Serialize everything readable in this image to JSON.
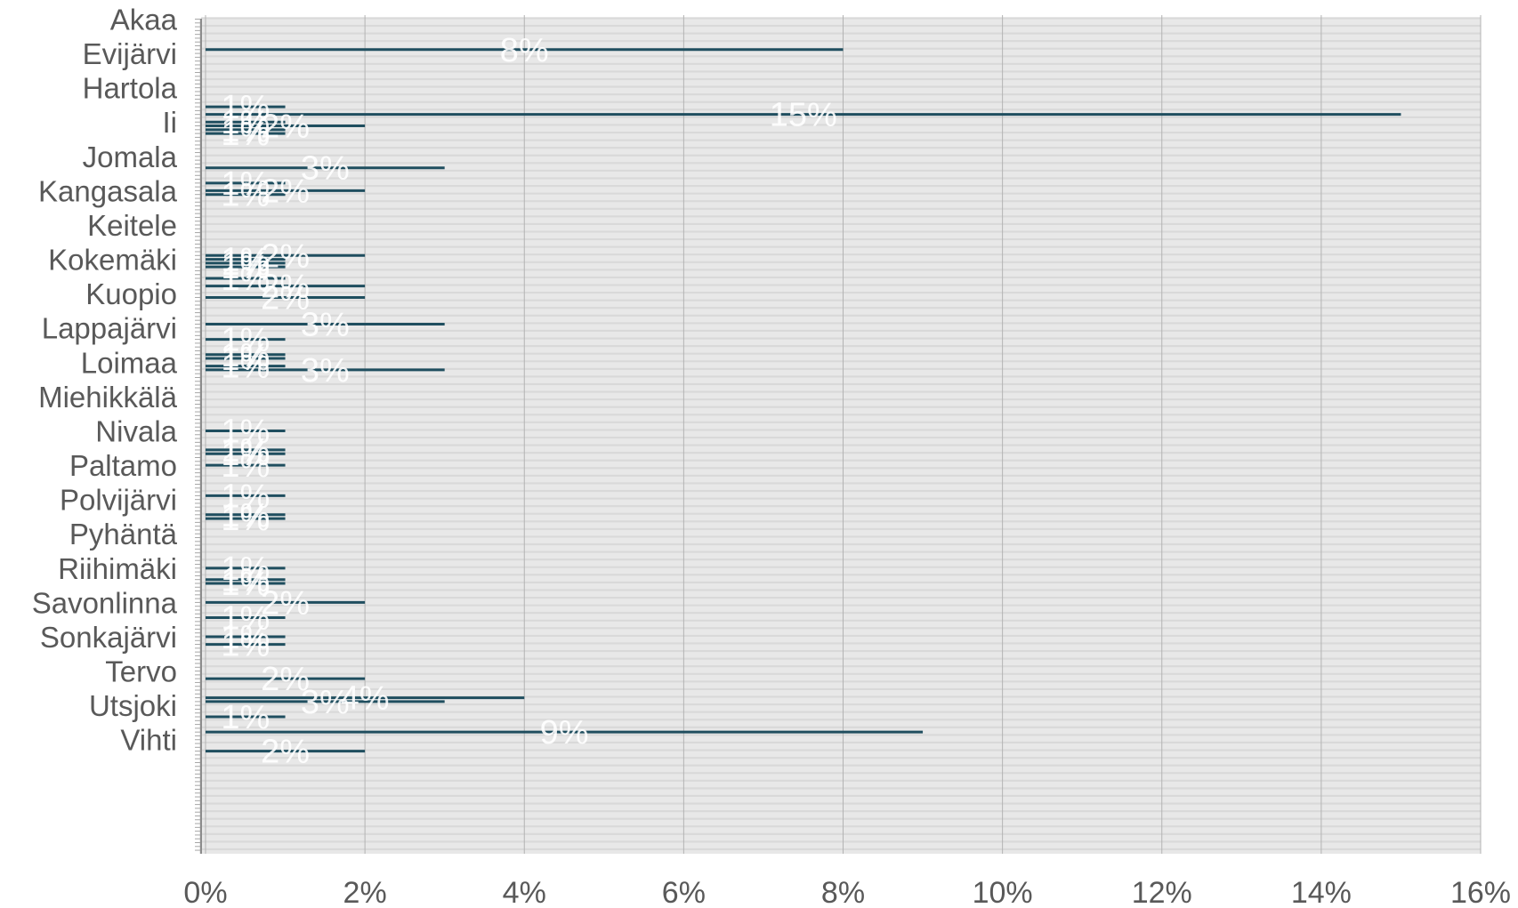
{
  "chart_data": {
    "type": "bar",
    "orientation": "horizontal",
    "title": "",
    "xlabel": "",
    "ylabel": "",
    "xlim": [
      0,
      16
    ],
    "x_ticks": [
      "0%",
      "2%",
      "4%",
      "6%",
      "8%",
      "10%",
      "12%",
      "14%",
      "16%"
    ],
    "category_labels": [
      "Akaa",
      "Evijärvi",
      "Hartola",
      "Ii",
      "Jomala",
      "Kangasala",
      "Keitele",
      "Kokemäki",
      "Kuopio",
      "Lappajärvi",
      "Loimaa",
      "Miehikkälä",
      "Nivala",
      "Paltamo",
      "Polvijärvi",
      "Pyhäntä",
      "Riihimäki",
      "Savonlinna",
      "Sonkajärvi",
      "Tervo",
      "Utsjoki",
      "Vihti"
    ],
    "bars": [
      {
        "row": 8,
        "value": 8,
        "label": "8%"
      },
      {
        "row": 23,
        "value": 1,
        "label": "1%"
      },
      {
        "row": 25,
        "value": 15,
        "label": "15%"
      },
      {
        "row": 27,
        "value": 1,
        "label": "1%"
      },
      {
        "row": 28,
        "value": 2,
        "label": "2%"
      },
      {
        "row": 29,
        "value": 1,
        "label": "1%"
      },
      {
        "row": 30,
        "value": 1,
        "label": "1%"
      },
      {
        "row": 39,
        "value": 3,
        "label": "3%"
      },
      {
        "row": 43,
        "value": 1,
        "label": "1%"
      },
      {
        "row": 45,
        "value": 2,
        "label": "2%"
      },
      {
        "row": 46,
        "value": 1,
        "label": "1%"
      },
      {
        "row": 62,
        "value": 2,
        "label": "2%"
      },
      {
        "row": 63,
        "value": 1,
        "label": "1%"
      },
      {
        "row": 64,
        "value": 1,
        "label": "1%"
      },
      {
        "row": 65,
        "value": 1,
        "label": "1%"
      },
      {
        "row": 68,
        "value": 1,
        "label": "1%"
      },
      {
        "row": 70,
        "value": 2,
        "label": "2%"
      },
      {
        "row": 73,
        "value": 2,
        "label": "2%"
      },
      {
        "row": 80,
        "value": 3,
        "label": "3%"
      },
      {
        "row": 84,
        "value": 1,
        "label": "1%"
      },
      {
        "row": 88,
        "value": 1,
        "label": "1%"
      },
      {
        "row": 89,
        "value": 1,
        "label": "1%"
      },
      {
        "row": 91,
        "value": 1,
        "label": "1%"
      },
      {
        "row": 92,
        "value": 3,
        "label": "3%"
      },
      {
        "row": 108,
        "value": 1,
        "label": "1%"
      },
      {
        "row": 113,
        "value": 1,
        "label": "1%"
      },
      {
        "row": 114,
        "value": 1,
        "label": "1%"
      },
      {
        "row": 117,
        "value": 1,
        "label": "1%"
      },
      {
        "row": 125,
        "value": 1,
        "label": "1%"
      },
      {
        "row": 130,
        "value": 1,
        "label": "1%"
      },
      {
        "row": 131,
        "value": 1,
        "label": "1%"
      },
      {
        "row": 144,
        "value": 1,
        "label": "1%"
      },
      {
        "row": 147,
        "value": 1,
        "label": "1%"
      },
      {
        "row": 148,
        "value": 1,
        "label": "1%"
      },
      {
        "row": 153,
        "value": 2,
        "label": "2%"
      },
      {
        "row": 157,
        "value": 1,
        "label": "1%"
      },
      {
        "row": 162,
        "value": 1,
        "label": "1%"
      },
      {
        "row": 164,
        "value": 1,
        "label": "1%"
      },
      {
        "row": 173,
        "value": 2,
        "label": "2%"
      },
      {
        "row": 178,
        "value": 4,
        "label": "4%"
      },
      {
        "row": 179,
        "value": 3,
        "label": "3%"
      },
      {
        "row": 183,
        "value": 1,
        "label": "1%"
      },
      {
        "row": 187,
        "value": 9,
        "label": "9%"
      },
      {
        "row": 192,
        "value": 2,
        "label": "2%"
      }
    ],
    "grid": true,
    "legend": "none",
    "colors": {
      "bar": "#1f4e5f",
      "plot_background": "#e8e8e8",
      "stripe": "#d9d9d9",
      "gridline": "#b3b3b3",
      "axis_text": "#595959",
      "data_label": "#ffffff"
    }
  }
}
